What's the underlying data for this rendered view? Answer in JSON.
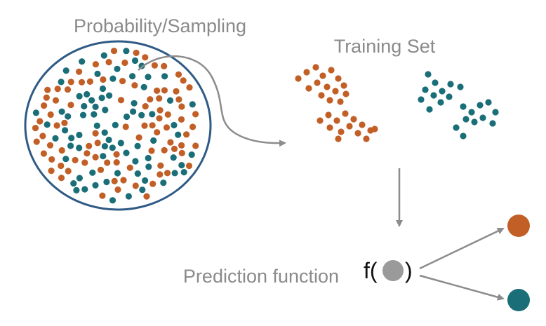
{
  "labels": {
    "population": "Probability/Sampling",
    "training": "Training Set",
    "prediction": "Prediction function",
    "f_open": "f(",
    "f_close": ")"
  },
  "colors": {
    "orange": "#C25F27",
    "teal": "#1A6E78",
    "gray_dot": "#9a9a9a",
    "arrow": "#8c8c8c",
    "circle_stroke": "#2e5a85",
    "label": "#8a8a8a"
  },
  "icons": {
    "population_circle": "circle-outline",
    "sampling_arrow": "curved-arrow",
    "down_arrow": "arrow-down",
    "output_arrows": "arrow-right",
    "input_dot": "filled-circle"
  },
  "outputs": [
    "orange",
    "teal"
  ]
}
